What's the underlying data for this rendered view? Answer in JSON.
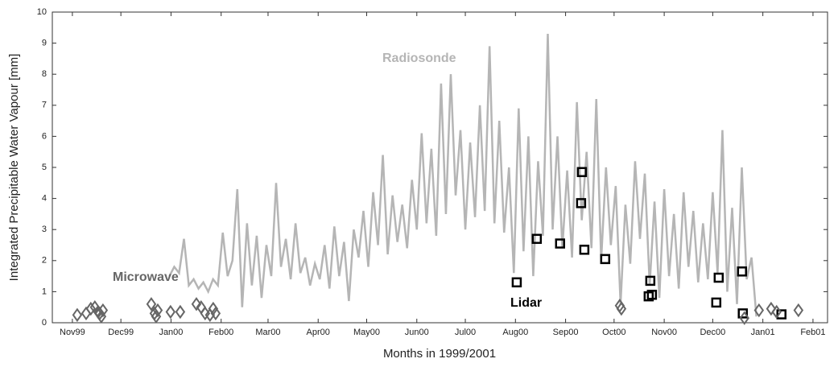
{
  "chart_data": {
    "type": "line",
    "y_label": "Integrated Precipitable Water Vapour  [mm]",
    "x_label": "Months in 1999/2001",
    "xlim": [
      -12.4,
      467
    ],
    "xticks": [
      {
        "value": 0,
        "label": "Nov99"
      },
      {
        "value": 30,
        "label": "Dec99"
      },
      {
        "value": 61,
        "label": "Jan00"
      },
      {
        "value": 92,
        "label": "Feb00"
      },
      {
        "value": 121,
        "label": "Mar00"
      },
      {
        "value": 152,
        "label": "Apr00"
      },
      {
        "value": 182,
        "label": "May00"
      },
      {
        "value": 213,
        "label": "Jun00"
      },
      {
        "value": 243,
        "label": "Jul00"
      },
      {
        "value": 274,
        "label": "Aug00"
      },
      {
        "value": 305,
        "label": "Sep00"
      },
      {
        "value": 335,
        "label": "Oct00"
      },
      {
        "value": 366,
        "label": "Nov00"
      },
      {
        "value": 396,
        "label": "Dec00"
      },
      {
        "value": 427,
        "label": "Jan01"
      },
      {
        "value": 458,
        "label": "Feb01"
      }
    ],
    "ylim": [
      0,
      10
    ],
    "yticks": [
      0,
      1,
      2,
      3,
      4,
      5,
      6,
      7,
      8,
      9,
      10
    ],
    "series": [
      {
        "name": "Radiosonde",
        "color": "#b5b5b5",
        "style": "line",
        "x": [
          60,
          63,
          66,
          69,
          72,
          75,
          78,
          81,
          84,
          87,
          90,
          93,
          96,
          99,
          102,
          105,
          108,
          111,
          114,
          117,
          120,
          123,
          126,
          129,
          132,
          135,
          138,
          141,
          144,
          147,
          150,
          153,
          156,
          159,
          162,
          165,
          168,
          171,
          174,
          177,
          180,
          183,
          186,
          189,
          192,
          195,
          198,
          201,
          204,
          207,
          210,
          213,
          216,
          219,
          222,
          225,
          228,
          231,
          234,
          237,
          240,
          243,
          246,
          249,
          252,
          255,
          258,
          261,
          264,
          267,
          270,
          273,
          276,
          279,
          282,
          285,
          288,
          291,
          294,
          297,
          300,
          303,
          306,
          309,
          312,
          315,
          318,
          321,
          324,
          327,
          330,
          333,
          336,
          339,
          342,
          345,
          348,
          351,
          354,
          357,
          360,
          363,
          366,
          369,
          372,
          375,
          378,
          381,
          384,
          387,
          390,
          393,
          396,
          399,
          402,
          405,
          408,
          411,
          414,
          417,
          420,
          423
        ],
        "values": [
          1.5,
          1.8,
          1.6,
          2.7,
          1.2,
          1.4,
          1.1,
          1.3,
          1.0,
          1.4,
          1.2,
          2.9,
          1.5,
          2.0,
          4.3,
          0.5,
          3.2,
          1.2,
          2.8,
          0.8,
          2.5,
          1.5,
          4.5,
          1.8,
          2.7,
          1.4,
          3.2,
          1.6,
          2.1,
          1.2,
          1.9,
          1.4,
          2.5,
          1.1,
          3.1,
          1.5,
          2.6,
          0.7,
          3.0,
          2.1,
          3.6,
          1.8,
          4.2,
          2.5,
          5.4,
          2.2,
          4.1,
          2.6,
          3.8,
          2.4,
          4.6,
          3.0,
          6.1,
          3.2,
          5.6,
          2.8,
          7.7,
          3.5,
          8.0,
          4.1,
          6.2,
          3.0,
          5.8,
          3.4,
          7.0,
          3.6,
          8.9,
          3.2,
          6.5,
          2.9,
          5.0,
          1.6,
          6.9,
          2.3,
          6.0,
          1.5,
          5.2,
          2.8,
          9.3,
          3.0,
          6.0,
          2.4,
          4.9,
          2.1,
          7.1,
          3.3,
          5.5,
          2.4,
          7.2,
          2.0,
          5.0,
          2.5,
          4.4,
          0.6,
          3.8,
          1.9,
          5.2,
          2.7,
          4.8,
          1.2,
          3.9,
          0.8,
          4.3,
          1.5,
          3.5,
          1.1,
          4.2,
          1.8,
          3.6,
          1.3,
          3.2,
          1.4,
          4.2,
          1.6,
          6.2,
          1.0,
          3.7,
          0.6,
          5.0,
          1.4,
          2.1,
          0.2
        ]
      },
      {
        "name": "Lidar",
        "color": "#000000",
        "style": "square",
        "x": [
          274.8,
          287.2,
          301.6,
          315.1,
          314.6,
          316.6,
          329.5,
          356.4,
          357.4,
          358.4,
          398.2,
          399.7,
          414.1,
          414.6,
          438.5
        ],
        "values": [
          1.3,
          2.7,
          2.55,
          4.85,
          3.85,
          2.35,
          2.05,
          0.85,
          1.35,
          0.9,
          0.65,
          1.45,
          1.65,
          0.3,
          0.27
        ]
      },
      {
        "name": "Microwave",
        "color": "#666666",
        "style": "diamond",
        "x": [
          3,
          8.5,
          11.4,
          13.9,
          15.9,
          17.9,
          18.9,
          16.9,
          48.8,
          50.8,
          52.8,
          51.8,
          60.7,
          66.7,
          76.7,
          79.6,
          82.1,
          85.1,
          87.1,
          88.6,
          338.5,
          339.5,
          415.6,
          424.6,
          432.1,
          435.5,
          449
        ],
        "values": [
          0.25,
          0.3,
          0.45,
          0.5,
          0.35,
          0.2,
          0.4,
          0.3,
          0.6,
          0.3,
          0.4,
          0.2,
          0.35,
          0.35,
          0.6,
          0.5,
          0.3,
          0.25,
          0.45,
          0.3,
          0.55,
          0.45,
          0.15,
          0.4,
          0.45,
          0.35,
          0.4
        ]
      }
    ]
  }
}
